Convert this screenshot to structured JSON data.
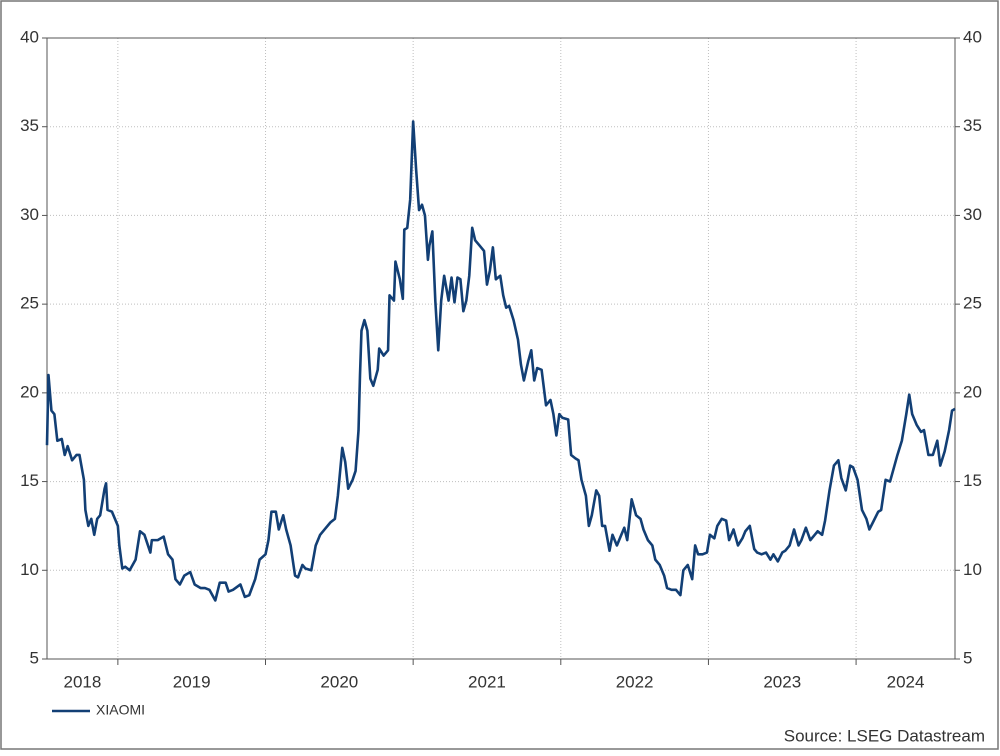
{
  "chart_data": {
    "type": "line",
    "source": "Source: LSEG Datastream",
    "x": [
      2018.52,
      2018.53,
      2018.55,
      2018.57,
      2018.59,
      2018.62,
      2018.64,
      2018.66,
      2018.69,
      2018.72,
      2018.74,
      2018.77,
      2018.78,
      2018.8,
      2018.82,
      2018.84,
      2018.86,
      2018.88,
      2018.91,
      2018.92,
      2018.93,
      2018.96,
      2019.0,
      2019.01,
      2019.03,
      2019.05,
      2019.08,
      2019.12,
      2019.15,
      2019.18,
      2019.22,
      2019.23,
      2019.27,
      2019.31,
      2019.34,
      2019.37,
      2019.39,
      2019.42,
      2019.45,
      2019.49,
      2019.52,
      2019.56,
      2019.59,
      2019.62,
      2019.66,
      2019.69,
      2019.73,
      2019.75,
      2019.78,
      2019.83,
      2019.86,
      2019.89,
      2019.93,
      2019.96,
      2020.0,
      2020.02,
      2020.04,
      2020.07,
      2020.09,
      2020.12,
      2020.14,
      2020.17,
      2020.2,
      2020.22,
      2020.25,
      2020.27,
      2020.31,
      2020.34,
      2020.37,
      2020.4,
      2020.44,
      2020.47,
      2020.49,
      2020.52,
      2020.54,
      2020.56,
      2020.59,
      2020.61,
      2020.63,
      2020.64,
      2020.65,
      2020.67,
      2020.69,
      2020.71,
      2020.73,
      2020.76,
      2020.77,
      2020.8,
      2020.83,
      2020.84,
      2020.87,
      2020.88,
      2020.91,
      2020.93,
      2020.94,
      2020.96,
      2020.98,
      2021.0,
      2021.02,
      2021.04,
      2021.06,
      2021.08,
      2021.1,
      2021.11,
      2021.13,
      2021.15,
      2021.17,
      2021.19,
      2021.21,
      2021.24,
      2021.26,
      2021.28,
      2021.3,
      2021.32,
      2021.34,
      2021.36,
      2021.38,
      2021.4,
      2021.42,
      2021.45,
      2021.48,
      2021.5,
      2021.52,
      2021.54,
      2021.56,
      2021.59,
      2021.61,
      2021.63,
      2021.65,
      2021.68,
      2021.71,
      2021.73,
      2021.75,
      2021.78,
      2021.8,
      2021.82,
      2021.84,
      2021.87,
      2021.9,
      2021.93,
      2021.95,
      2021.97,
      2021.99,
      2022.01,
      2022.05,
      2022.07,
      2022.1,
      2022.12,
      2022.14,
      2022.17,
      2022.19,
      2022.21,
      2022.24,
      2022.26,
      2022.28,
      2022.3,
      2022.33,
      2022.35,
      2022.38,
      2022.41,
      2022.43,
      2022.45,
      2022.48,
      2022.51,
      2022.54,
      2022.56,
      2022.59,
      2022.62,
      2022.64,
      2022.67,
      2022.7,
      2022.72,
      2022.75,
      2022.78,
      2022.81,
      2022.83,
      2022.86,
      2022.89,
      2022.91,
      2022.93,
      2022.96,
      2022.99,
      2023.01,
      2023.04,
      2023.06,
      2023.09,
      2023.12,
      2023.14,
      2023.17,
      2023.2,
      2023.23,
      2023.25,
      2023.28,
      2023.31,
      2023.33,
      2023.36,
      2023.39,
      2023.42,
      2023.44,
      2023.47,
      2023.5,
      2023.52,
      2023.55,
      2023.58,
      2023.61,
      2023.63,
      2023.66,
      2023.69,
      2023.72,
      2023.74,
      2023.77,
      2023.79,
      2023.82,
      2023.85,
      2023.88,
      2023.9,
      2023.93,
      2023.96,
      2023.98,
      2024.01,
      2024.04,
      2024.07,
      2024.09,
      2024.12,
      2024.15,
      2024.17,
      2024.2,
      2024.23,
      2024.25,
      2024.28,
      2024.31,
      2024.34,
      2024.36,
      2024.38,
      2024.41,
      2024.44,
      2024.46,
      2024.49,
      2024.52,
      2024.55,
      2024.57,
      2024.6,
      2024.63,
      2024.65,
      2024.67
    ],
    "series": [
      {
        "name": "XIAOMI",
        "color": "#123f75",
        "values": [
          17.05,
          21.0,
          19.0,
          18.8,
          17.3,
          17.4,
          16.5,
          17.0,
          16.2,
          16.5,
          16.5,
          15.1,
          13.4,
          12.5,
          12.9,
          12.0,
          12.9,
          13.1,
          14.6,
          14.9,
          13.4,
          13.3,
          12.5,
          11.4,
          10.1,
          10.2,
          10.0,
          10.6,
          12.2,
          12.0,
          11.0,
          11.7,
          11.7,
          11.9,
          10.9,
          10.6,
          9.5,
          9.2,
          9.7,
          9.9,
          9.2,
          9.0,
          9.0,
          8.9,
          8.3,
          9.3,
          9.3,
          8.8,
          8.9,
          9.2,
          8.5,
          8.6,
          9.5,
          10.6,
          10.9,
          11.7,
          13.3,
          13.3,
          12.3,
          13.1,
          12.3,
          11.4,
          9.7,
          9.6,
          10.3,
          10.1,
          10.0,
          11.4,
          12.0,
          12.3,
          12.7,
          12.9,
          14.2,
          16.9,
          16.1,
          14.6,
          15.1,
          15.6,
          17.9,
          21.0,
          23.5,
          24.1,
          23.5,
          20.8,
          20.4,
          21.3,
          22.5,
          22.1,
          22.4,
          25.5,
          25.2,
          27.4,
          26.4,
          25.3,
          29.2,
          29.3,
          30.9,
          35.3,
          32.6,
          30.3,
          30.6,
          30.0,
          27.5,
          28.3,
          29.1,
          25.2,
          22.4,
          25.2,
          26.6,
          25.2,
          26.5,
          25.1,
          26.5,
          26.4,
          24.6,
          25.2,
          26.6,
          29.3,
          28.6,
          28.3,
          28.0,
          26.1,
          26.9,
          28.2,
          26.4,
          26.6,
          25.5,
          24.8,
          24.9,
          24.1,
          23.0,
          21.6,
          20.7,
          21.8,
          22.4,
          20.7,
          21.4,
          21.3,
          19.3,
          19.6,
          18.8,
          17.6,
          18.8,
          18.6,
          18.5,
          16.5,
          16.3,
          16.2,
          15.1,
          14.2,
          12.5,
          13.1,
          14.5,
          14.2,
          12.5,
          12.5,
          11.1,
          12.0,
          11.4,
          12.0,
          12.4,
          11.7,
          14.0,
          13.1,
          12.9,
          12.3,
          11.7,
          11.4,
          10.6,
          10.3,
          9.7,
          9.0,
          8.9,
          8.9,
          8.6,
          10.0,
          10.3,
          9.5,
          11.4,
          10.9,
          10.9,
          11.0,
          12.0,
          11.8,
          12.5,
          12.9,
          12.8,
          11.7,
          12.3,
          11.4,
          11.8,
          12.2,
          12.5,
          11.2,
          11.0,
          10.9,
          11.0,
          10.6,
          10.9,
          10.5,
          11.0,
          11.1,
          11.4,
          12.3,
          11.4,
          11.7,
          12.4,
          11.7,
          12.0,
          12.2,
          12.0,
          12.8,
          14.5,
          15.9,
          16.2,
          15.2,
          14.5,
          15.9,
          15.8,
          15.1,
          13.4,
          12.9,
          12.3,
          12.8,
          13.3,
          13.4,
          15.1,
          15.0,
          15.6,
          16.5,
          17.3,
          18.8,
          19.9,
          18.8,
          18.2,
          17.8,
          17.9,
          16.5,
          16.5,
          17.3,
          15.9,
          16.7,
          17.9,
          19.0,
          19.1
        ]
      }
    ],
    "xlim": [
      2018.52,
      2024.67
    ],
    "xticks": [
      2019,
      2020,
      2021,
      2022,
      2023,
      2024
    ],
    "x_labels": [
      2018,
      2019,
      2020,
      2021,
      2022,
      2023,
      2024
    ],
    "ylim": [
      5,
      40
    ],
    "yticks": [
      5,
      10,
      15,
      20,
      25,
      30,
      35,
      40
    ],
    "grid": true,
    "legend": "bottom-left"
  }
}
